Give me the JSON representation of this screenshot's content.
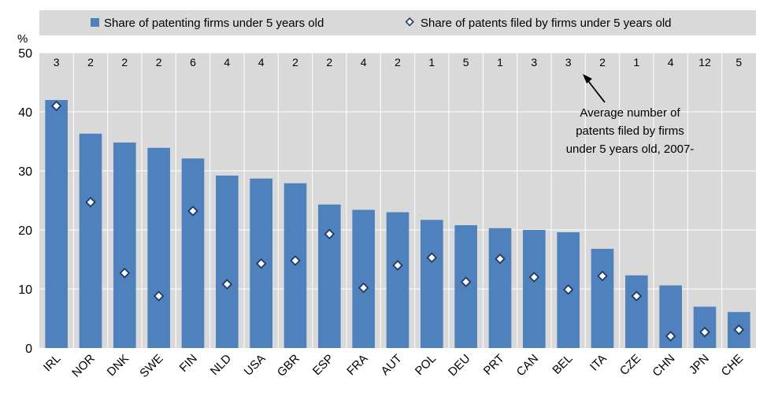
{
  "chart_data": {
    "type": "bar",
    "unit_label": "%",
    "ylim": [
      0,
      50
    ],
    "yticks": [
      0,
      10,
      20,
      30,
      40,
      50
    ],
    "grid": true,
    "legend_position": "top",
    "categories": [
      "IRL",
      "NOR",
      "DNK",
      "SWE",
      "FIN",
      "NLD",
      "USA",
      "GBR",
      "ESP",
      "FRA",
      "AUT",
      "POL",
      "DEU",
      "PRT",
      "CAN",
      "BEL",
      "ITA",
      "CZE",
      "CHN",
      "JPN",
      "CHE"
    ],
    "series": [
      {
        "name": "Share of patenting firms under 5 years old",
        "kind": "bar",
        "color": "#4f81bd",
        "values": [
          42.0,
          36.3,
          34.8,
          33.9,
          32.1,
          29.2,
          28.7,
          27.9,
          24.3,
          23.4,
          23.0,
          21.7,
          20.8,
          20.3,
          20.0,
          19.6,
          16.8,
          12.3,
          10.6,
          7.0,
          6.1
        ]
      },
      {
        "name": "Share of patents filed by firms under 5 years old",
        "kind": "marker",
        "color": "#ffffff",
        "values": [
          41.0,
          24.7,
          12.7,
          8.8,
          23.2,
          10.8,
          14.3,
          14.8,
          19.3,
          10.2,
          14.0,
          15.3,
          11.2,
          15.1,
          12.0,
          9.9,
          12.2,
          8.8,
          2.0,
          2.7,
          3.1
        ]
      }
    ],
    "counts": [
      "3",
      "2",
      "2",
      "2",
      "6",
      "4",
      "4",
      "2",
      "2",
      "4",
      "2",
      "1",
      "5",
      "1",
      "3",
      "3",
      "2",
      "1",
      "4",
      "12",
      "5"
    ],
    "annotation": [
      "Average number of",
      "patents filed by firms",
      "under 5 years old, 2007-"
    ],
    "colors": {
      "plot_background": "#d9d9d9",
      "grid": "#ffffff",
      "bar": "#4f81bd",
      "marker_edge": "#1f3864",
      "marker_fill": "#ffffff"
    }
  }
}
